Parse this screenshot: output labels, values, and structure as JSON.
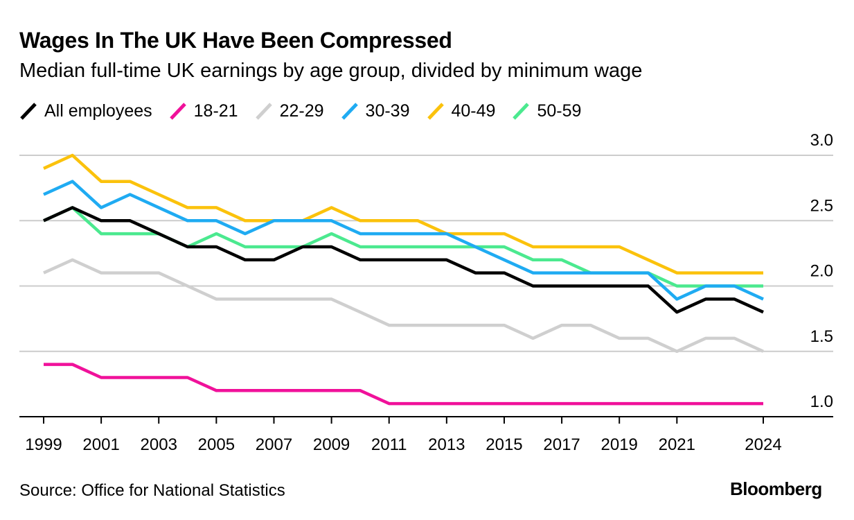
{
  "header": {
    "title": "Wages In The UK Have Been Compressed",
    "subtitle": "Median full-time UK earnings by age group, divided by minimum wage"
  },
  "footer": {
    "source": "Source: Office for National Statistics",
    "brand": "Bloomberg"
  },
  "chart_data": {
    "type": "line",
    "title": "Wages In The UK Have Been Compressed",
    "subtitle": "Median full-time UK earnings by age group, divided by minimum wage",
    "xlabel": "",
    "ylabel": "",
    "x": [
      1999,
      2000,
      2001,
      2002,
      2003,
      2004,
      2005,
      2006,
      2007,
      2008,
      2009,
      2010,
      2011,
      2012,
      2013,
      2014,
      2015,
      2016,
      2017,
      2018,
      2019,
      2020,
      2021,
      2022,
      2023,
      2024
    ],
    "x_tick_labels": [
      "1999",
      "2001",
      "2003",
      "2005",
      "2007",
      "2009",
      "2011",
      "2013",
      "2015",
      "2017",
      "2019",
      "2021",
      "2024"
    ],
    "x_tick_values": [
      1999,
      2001,
      2003,
      2005,
      2007,
      2009,
      2011,
      2013,
      2015,
      2017,
      2019,
      2021,
      2024
    ],
    "ylim": [
      1.0,
      3.0
    ],
    "y_ticks": [
      1.0,
      1.5,
      2.0,
      2.5,
      3.0
    ],
    "y_tick_labels": [
      "1.0",
      "1.5",
      "2.0",
      "2.5",
      "3.0"
    ],
    "y_axis_position": "right",
    "grid": true,
    "legend_position": "top-left",
    "series": [
      {
        "name": "18-21",
        "color": "#f0119a",
        "values": [
          1.4,
          1.4,
          1.3,
          1.3,
          1.3,
          1.3,
          1.2,
          1.2,
          1.2,
          1.2,
          1.2,
          1.2,
          1.1,
          1.1,
          1.1,
          1.1,
          1.1,
          1.1,
          1.1,
          1.1,
          1.1,
          1.1,
          1.1,
          1.1,
          1.1,
          1.1
        ]
      },
      {
        "name": "22-29",
        "color": "#cfcfcf",
        "values": [
          2.1,
          2.2,
          2.1,
          2.1,
          2.1,
          2.0,
          1.9,
          1.9,
          1.9,
          1.9,
          1.9,
          1.8,
          1.7,
          1.7,
          1.7,
          1.7,
          1.7,
          1.6,
          1.7,
          1.7,
          1.6,
          1.6,
          1.5,
          1.6,
          1.6,
          1.5
        ]
      },
      {
        "name": "50-59",
        "color": "#4be98f",
        "values": [
          2.5,
          2.6,
          2.4,
          2.4,
          2.4,
          2.3,
          2.4,
          2.3,
          2.3,
          2.3,
          2.4,
          2.3,
          2.3,
          2.3,
          2.3,
          2.3,
          2.3,
          2.2,
          2.2,
          2.1,
          2.1,
          2.1,
          2.0,
          2.0,
          2.0,
          2.0
        ]
      },
      {
        "name": "40-49",
        "color": "#fbc20c",
        "values": [
          2.9,
          3.0,
          2.8,
          2.8,
          2.7,
          2.6,
          2.6,
          2.5,
          2.5,
          2.5,
          2.6,
          2.5,
          2.5,
          2.5,
          2.4,
          2.4,
          2.4,
          2.3,
          2.3,
          2.3,
          2.3,
          2.2,
          2.1,
          2.1,
          2.1,
          2.1
        ]
      },
      {
        "name": "30-39",
        "color": "#1fabf2",
        "values": [
          2.7,
          2.8,
          2.6,
          2.7,
          2.6,
          2.5,
          2.5,
          2.4,
          2.5,
          2.5,
          2.5,
          2.4,
          2.4,
          2.4,
          2.4,
          2.3,
          2.2,
          2.1,
          2.1,
          2.1,
          2.1,
          2.1,
          1.9,
          2.0,
          2.0,
          1.9
        ]
      },
      {
        "name": "All employees",
        "color": "#000000",
        "values": [
          2.5,
          2.6,
          2.5,
          2.5,
          2.4,
          2.3,
          2.3,
          2.2,
          2.2,
          2.3,
          2.3,
          2.2,
          2.2,
          2.2,
          2.2,
          2.1,
          2.1,
          2.0,
          2.0,
          2.0,
          2.0,
          2.0,
          1.8,
          1.9,
          1.9,
          1.8
        ]
      }
    ],
    "legend_order": [
      "All employees",
      "18-21",
      "22-29",
      "30-39",
      "40-49",
      "50-59"
    ]
  }
}
